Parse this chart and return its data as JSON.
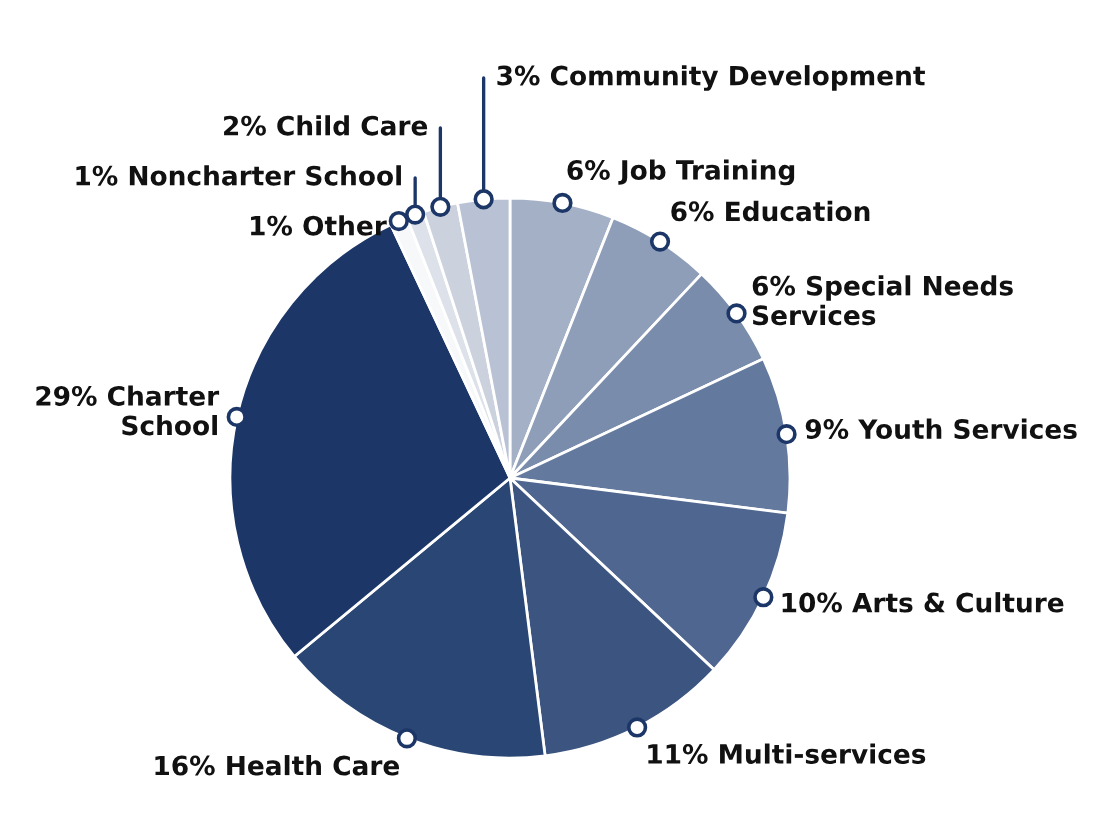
{
  "chart_data": {
    "type": "pie",
    "categories": [
      "Job Training",
      "Education",
      "Special Needs\nServices",
      "Youth Services",
      "Arts & Culture",
      "Multi-services",
      "Health Care",
      "Charter\nSchool",
      "Other",
      "Noncharter School",
      "Child Care",
      "Community Development"
    ],
    "values": [
      6,
      6,
      6,
      9,
      10,
      11,
      16,
      29,
      1,
      1,
      2,
      3
    ],
    "value_labels": [
      "6%",
      "6%",
      "6%",
      "9%",
      "10%",
      "11%",
      "16%",
      "29%",
      "1%",
      "1%",
      "2%",
      "3%"
    ],
    "colors": [
      "#a3b0c6",
      "#8e9eb9",
      "#7a8cab",
      "#63799e",
      "#4f6690",
      "#3b5580",
      "#2a4674",
      "#1c3767",
      "#f7f8fa",
      "#dde2ea",
      "#cbd2de",
      "#b8c2d4"
    ]
  }
}
